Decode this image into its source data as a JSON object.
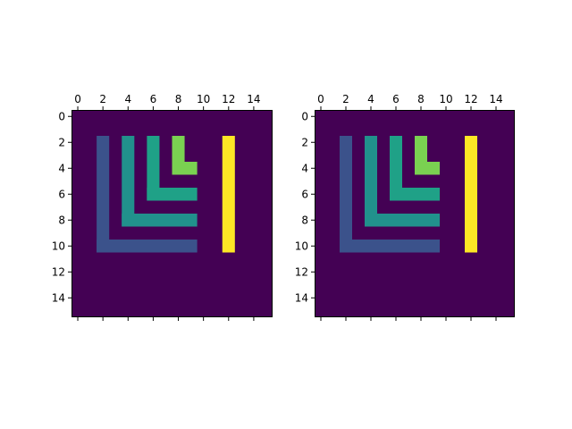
{
  "chart_data": [
    {
      "type": "heatmap",
      "title": "",
      "xlabel": "",
      "ylabel": "",
      "x_range": [
        -0.5,
        15.5
      ],
      "y_range": [
        15.5,
        -0.5
      ],
      "y_inverted": true,
      "x_ticks_position": "top",
      "x_ticks": [
        0,
        2,
        4,
        6,
        8,
        10,
        12,
        14
      ],
      "y_ticks": [
        0,
        2,
        4,
        6,
        8,
        10,
        12,
        14
      ],
      "grid": false,
      "colormap": "viridis",
      "background_value": 0,
      "value_colors": {
        "0": "#440154",
        "1": "#3b528b",
        "2": "#21918c",
        "3": "#1fa187",
        "4": "#7ad151",
        "5": "#fde725"
      },
      "shapes": [
        {
          "value": 1,
          "cells": "column 2 rows 2-10, row 10 columns 2-9"
        },
        {
          "value": 2,
          "cells": "column 4 rows 2-8, row 8 columns 4-9"
        },
        {
          "value": 3,
          "cells": "column 6 rows 2-6, row 6 columns 6-9"
        },
        {
          "value": 4,
          "cells": "column 8 rows 2-4, row 4 columns 8-9"
        },
        {
          "value": 5,
          "cells": "column 12 rows 2-10"
        }
      ],
      "regions": [
        {
          "value": 1,
          "rect": [
            2,
            2,
            2,
            10
          ]
        },
        {
          "value": 1,
          "rect": [
            2,
            10,
            9,
            10
          ]
        },
        {
          "value": 2,
          "rect": [
            4,
            2,
            4,
            8
          ]
        },
        {
          "value": 2,
          "rect": [
            4,
            8,
            9,
            8
          ]
        },
        {
          "value": 3,
          "rect": [
            6,
            2,
            6,
            6
          ]
        },
        {
          "value": 3,
          "rect": [
            6,
            6,
            9,
            6
          ]
        },
        {
          "value": 4,
          "rect": [
            8,
            2,
            8,
            4
          ]
        },
        {
          "value": 4,
          "rect": [
            8,
            4,
            9,
            4
          ]
        },
        {
          "value": 5,
          "rect": [
            12,
            2,
            12,
            10
          ]
        }
      ]
    },
    {
      "type": "heatmap",
      "title": "",
      "xlabel": "",
      "ylabel": "",
      "x_range": [
        -0.5,
        15.5
      ],
      "y_range": [
        15.5,
        -0.5
      ],
      "y_inverted": true,
      "x_ticks_position": "top",
      "x_ticks": [
        0,
        2,
        4,
        6,
        8,
        10,
        12,
        14
      ],
      "y_ticks": [
        0,
        2,
        4,
        6,
        8,
        10,
        12,
        14
      ],
      "grid": false,
      "colormap": "viridis",
      "background_value": 0,
      "value_colors": {
        "0": "#440154",
        "1": "#3b528b",
        "2": "#21918c",
        "3": "#1fa187",
        "4": "#7ad151",
        "5": "#fde725"
      },
      "shapes": [
        {
          "value": 1,
          "cells": "column 2 rows 2-10, row 10 columns 2-9"
        },
        {
          "value": 2,
          "cells": "column 4 rows 2-8, row 8 columns 4-9"
        },
        {
          "value": 3,
          "cells": "column 6 rows 2-6, row 6 columns 6-9"
        },
        {
          "value": 4,
          "cells": "column 8 rows 2-4, row 4 columns 8-9"
        },
        {
          "value": 5,
          "cells": "column 12 rows 2-10"
        }
      ],
      "regions": [
        {
          "value": 1,
          "rect": [
            2,
            2,
            2,
            10
          ]
        },
        {
          "value": 1,
          "rect": [
            2,
            10,
            9,
            10
          ]
        },
        {
          "value": 2,
          "rect": [
            4,
            2,
            4,
            8
          ]
        },
        {
          "value": 2,
          "rect": [
            4,
            8,
            9,
            8
          ]
        },
        {
          "value": 3,
          "rect": [
            6,
            2,
            6,
            6
          ]
        },
        {
          "value": 3,
          "rect": [
            6,
            6,
            9,
            6
          ]
        },
        {
          "value": 4,
          "rect": [
            8,
            2,
            8,
            4
          ]
        },
        {
          "value": 4,
          "rect": [
            8,
            4,
            9,
            4
          ]
        },
        {
          "value": 5,
          "rect": [
            12,
            2,
            12,
            10
          ]
        }
      ]
    }
  ]
}
